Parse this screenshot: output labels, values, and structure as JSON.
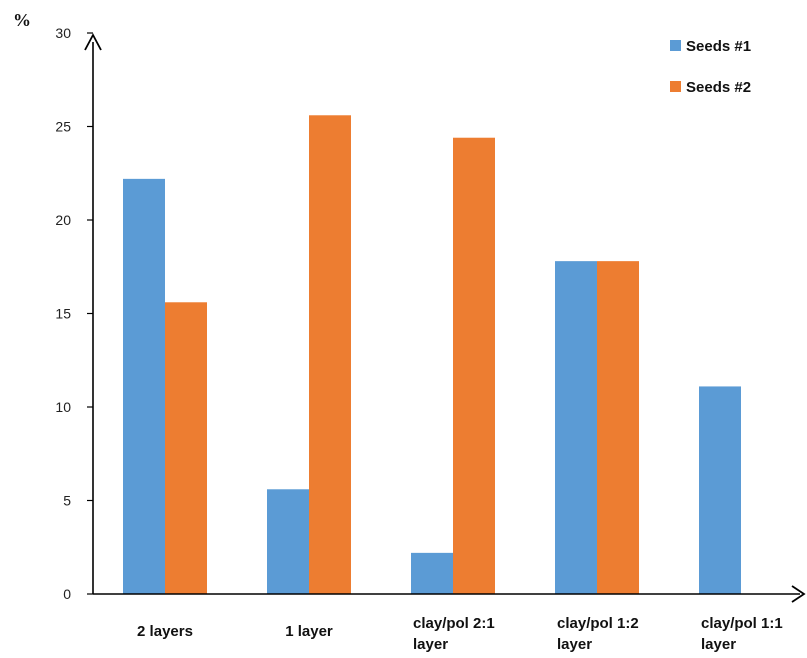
{
  "chart_data": {
    "type": "bar",
    "ylabel": "%",
    "xlabel": "",
    "ylim": [
      0,
      30
    ],
    "yticks": [
      0,
      5,
      10,
      15,
      20,
      25,
      30
    ],
    "categories": [
      [
        "2 layers"
      ],
      [
        "1 layer"
      ],
      [
        "clay/pol 2:1",
        "layer"
      ],
      [
        "clay/pol 1:2",
        "layer"
      ],
      [
        "clay/pol 1:1",
        "layer"
      ]
    ],
    "series": [
      {
        "name": "Seeds #1",
        "color": "#5B9BD5",
        "values": [
          22.2,
          5.6,
          2.2,
          17.8,
          11.1
        ]
      },
      {
        "name": "Seeds #2",
        "color": "#ED7D31",
        "values": [
          15.6,
          25.6,
          24.4,
          17.8,
          0
        ]
      }
    ],
    "legend": "top-right",
    "grid": false
  }
}
